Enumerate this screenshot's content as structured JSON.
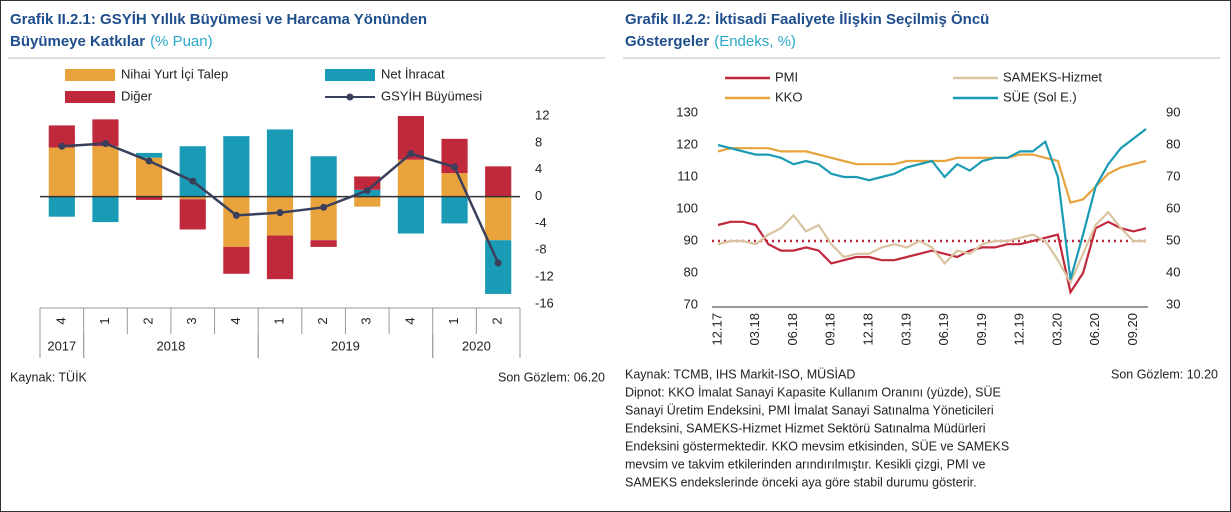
{
  "chart_data": [
    {
      "type": "bar",
      "title": [
        "Grafik II.2.1: GSYİH Yıllık Büyümesi ve Harcama Yönünden",
        "Büyümeye Katkılar"
      ],
      "unit": "(% Puan)",
      "categories": [
        "4",
        "1",
        "2",
        "3",
        "4",
        "1",
        "2",
        "3",
        "4",
        "1",
        "2"
      ],
      "year_groups": [
        {
          "label": "2017",
          "start": 0,
          "end": 0
        },
        {
          "label": "2018",
          "start": 1,
          "end": 4
        },
        {
          "label": "2019",
          "start": 5,
          "end": 8
        },
        {
          "label": "2020",
          "start": 9,
          "end": 10
        }
      ],
      "series": [
        {
          "name": "Nihai Yurt İçi Talep",
          "color": "#e8a33d",
          "values": [
            7.3,
            7.5,
            5.8,
            -0.4,
            -7.5,
            -5.8,
            -6.5,
            -1.5,
            5.5,
            3.5,
            -6.5
          ]
        },
        {
          "name": "Net İhracat",
          "color": "#1a9bb5",
          "values": [
            -3,
            -3.8,
            0.7,
            7.5,
            9,
            10,
            6,
            1,
            -5.5,
            -4,
            -8
          ]
        },
        {
          "name": "Diğer",
          "color": "#c0283c",
          "values": [
            3.3,
            4,
            -0.5,
            -4.5,
            -4,
            -6.5,
            -1,
            2,
            6.5,
            5.1,
            4.5
          ]
        },
        {
          "name": "GSYİH Büyümesi",
          "color": "#3a3f5c",
          "type": "line",
          "values": [
            7.5,
            7.9,
            5.3,
            2.3,
            -2.8,
            -2.4,
            -1.6,
            0.9,
            6.4,
            4.4,
            -9.9
          ]
        }
      ],
      "ylim": [
        -16,
        12
      ],
      "yticks": [
        12,
        8,
        4,
        0,
        -4,
        -8,
        -12,
        -16
      ],
      "source": "Kaynak: TÜİK",
      "last_observation": "Son Gözlem: 06.20"
    },
    {
      "type": "line",
      "title": [
        "Grafik II.2.2: İktisadi Faaliyete İlişkin Seçilmiş Öncü",
        "Göstergeler"
      ],
      "unit": "(Endeks, %)",
      "categories": [
        "12.17",
        null,
        null,
        "03.18",
        null,
        null,
        "06.18",
        null,
        null,
        "09.18",
        null,
        null,
        "12.18",
        null,
        null,
        "03.19",
        null,
        null,
        "06.19",
        null,
        null,
        "09.19",
        null,
        null,
        "12.19",
        null,
        null,
        "03.20",
        null,
        null,
        "06.20",
        null,
        null,
        "09.20",
        null
      ],
      "series": [
        {
          "name": "PMI",
          "color": "#c0283c",
          "axis": "y2",
          "values": [
            55,
            56,
            56,
            55,
            49,
            47,
            47,
            48,
            47,
            43,
            44,
            45,
            45,
            44,
            44,
            45,
            46,
            47,
            46,
            45,
            47,
            48,
            48,
            49,
            49,
            50,
            51,
            52,
            34,
            40,
            54,
            56,
            54,
            53,
            54
          ]
        },
        {
          "name": "SAMEKS-Hizmet",
          "color": "#d9c3a0",
          "axis": "y2",
          "values": [
            49,
            50,
            50,
            49,
            52,
            54,
            58,
            53,
            55,
            49,
            45,
            46,
            46,
            48,
            49,
            48,
            50,
            48,
            43,
            47,
            46,
            49,
            50,
            50,
            51,
            52,
            50,
            44,
            37,
            46,
            55,
            59,
            54,
            50,
            50
          ]
        },
        {
          "name": "KKO",
          "color": "#e8a33d",
          "axis": "y2",
          "values": [
            78,
            79,
            79,
            79,
            79,
            78,
            78,
            78,
            77,
            76,
            75,
            74,
            74,
            74,
            74,
            75,
            75,
            75,
            75,
            76,
            76,
            76,
            76,
            76,
            77,
            77,
            76,
            75,
            62,
            63,
            67,
            71,
            73,
            74,
            75
          ]
        },
        {
          "name": "SÜE (Sol E.)",
          "color": "#1a9bb5",
          "values": [
            120,
            119,
            118,
            117,
            117,
            116,
            114,
            115,
            114,
            111,
            110,
            110,
            109,
            110,
            111,
            113,
            114,
            115,
            110,
            114,
            112,
            115,
            116,
            116,
            118,
            118,
            121,
            110,
            78,
            92,
            107,
            114,
            119,
            122,
            125
          ]
        }
      ],
      "ylim": [
        70,
        130
      ],
      "yticks": [
        70,
        80,
        90,
        100,
        110,
        120,
        130
      ],
      "y2lim": [
        30,
        90
      ],
      "y2ticks": [
        30,
        40,
        50,
        60,
        70,
        80,
        90
      ],
      "reference_line": {
        "value": 50,
        "axis": "y2",
        "color": "#c0283c"
      },
      "source": "Kaynak: TCMB, IHS Markit-ISO, MÜSİAD",
      "last_observation": "Son Gözlem: 10.20",
      "notes": [
        "Dipnot:  KKO İmalat Sanayi Kapasite Kullanım Oranını (yüzde), SÜE",
        "Sanayi Üretim Endeksini, PMI İmalat Sanayi Satınalma Yöneticileri",
        "Endeksini, SAMEKS-Hizmet Hizmet Sektörü Satınalma Müdürleri",
        "Endeksini göstermektedir. KKO mevsim etkisinden, SÜE ve SAMEKS",
        "mevsim ve takvim etkilerinden arındırılmıştır. Kesikli çizgi, PMI ve",
        "SAMEKS endekslerinde önceki aya göre stabil durumu gösterir."
      ]
    }
  ]
}
